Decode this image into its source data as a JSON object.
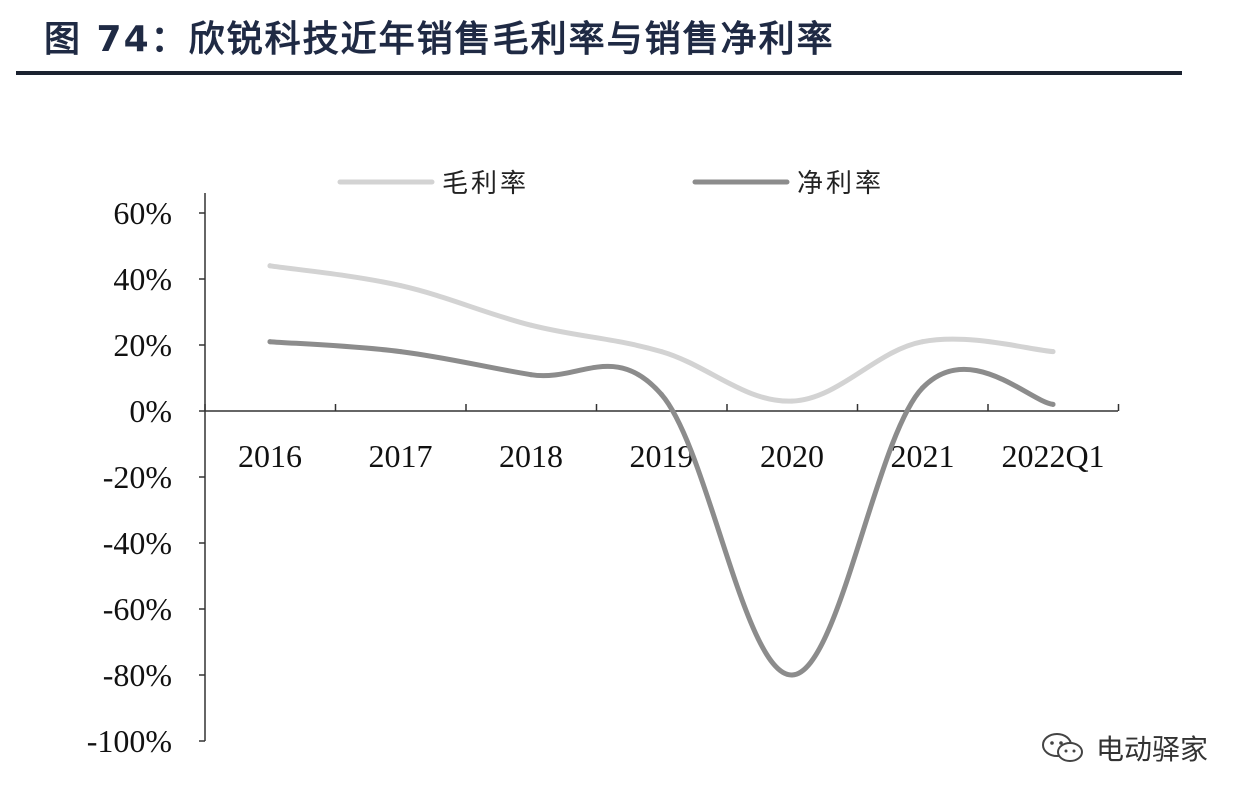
{
  "header": {
    "title": "图 74：欣锐科技近年销售毛利率与销售净利率"
  },
  "watermark": {
    "icon": "wechat-icon",
    "text": "电动驿家"
  },
  "colors": {
    "gross_margin": "#d3d3d3",
    "net_margin": "#8c8c8c",
    "axis": "#333333",
    "title": "#1f2a44"
  },
  "chart_data": {
    "type": "line",
    "categories": [
      "2016",
      "2017",
      "2018",
      "2019",
      "2020",
      "2021",
      "2022Q1"
    ],
    "series": [
      {
        "name": "毛利率",
        "values": [
          44,
          38,
          26,
          18,
          3,
          21,
          18
        ],
        "color": "#d3d3d3"
      },
      {
        "name": "净利率",
        "values": [
          21,
          18,
          11,
          5,
          -80,
          7,
          2
        ],
        "color": "#8c8c8c"
      }
    ],
    "ylim": [
      -100,
      60
    ],
    "yticks": [
      "60%",
      "40%",
      "20%",
      "0%",
      "-20%",
      "-40%",
      "-60%",
      "-80%",
      "-100%"
    ],
    "ytick_values": [
      60,
      40,
      20,
      0,
      -20,
      -40,
      -60,
      -80,
      -100
    ],
    "legend_position": "top",
    "grid": false,
    "smooth": true
  }
}
